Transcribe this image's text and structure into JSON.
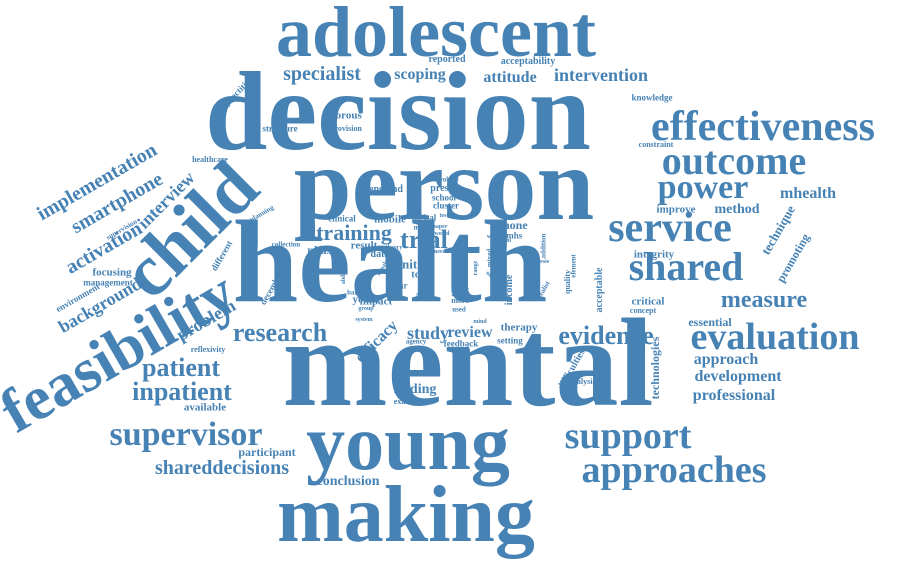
{
  "color": "#4682b4",
  "words": {
    "adolescent": "adolescent",
    "decision": "decision",
    "person": "person",
    "health": "health",
    "mental": "mental",
    "young": "young",
    "making": "making",
    "child": "child",
    "feasibility": "feasibility",
    "effectiveness": "effectiveness",
    "outcome": "outcome",
    "service": "service",
    "power": "power",
    "shared": "shared",
    "measure": "measure",
    "evaluation": "evaluation",
    "support": "support",
    "approaches": "approaches",
    "supervisor": "supervisor",
    "shareddecisions": "shareddecisions",
    "research": "research",
    "patient": "patient",
    "inpatient": "inpatient",
    "evidence": "evidence",
    "training": "training",
    "trial": "trial",
    "specialist": "specialist",
    "scoping": "scoping",
    "attitude": "attitude",
    "intervention": "intervention",
    "implementation": "implementation",
    "smartphone": "smartphone",
    "interview": "interview",
    "activation": "activation",
    "background": "background",
    "problem": "problem",
    "study": "study",
    "review": "review",
    "efficacy": "efficacy",
    "approach": "approach",
    "development": "development",
    "professional": "professional",
    "mhealth": "mhealth",
    "method": "method",
    "improve": "improve",
    "integrity": "integrity",
    "technique": "technique",
    "promoting": "promoting",
    "critical": "critical",
    "concept": "concept",
    "essential": "essential",
    "technologies": "technologies",
    "difficulties": "difficulties",
    "analysis": "analysis",
    "finding": "finding",
    "examine": "examine",
    "participant": "participant",
    "conclusion": "conclusion",
    "reflexivity": "reflexivity",
    "available": "available",
    "therapy": "therapy",
    "setting": "setting",
    "feedback": "feedback",
    "agency": "agency",
    "impact": "impact",
    "tool": "tool",
    "youth": "youth",
    "unit": "unit",
    "self": "self",
    "prom": "prom",
    "income": "income",
    "factor": "factor",
    "acceptable": "acceptable",
    "quality": "quality",
    "element": "element",
    "realist": "realist",
    "addition": "addition",
    "phone": "phone",
    "camhs": "camhs",
    "data": "data",
    "phase": "phase",
    "result": "result",
    "clinical": "clinical",
    "mobile": "mobile",
    "digital": "digital",
    "many": "many",
    "paper": "paper",
    "testing": "testing",
    "present": "present",
    "school": "school",
    "cluster": "cluster",
    "involved": "involved",
    "england": "england",
    "collection": "collection",
    "planning": "planning",
    "countrie": "countrie",
    "december": "december",
    "different": "different",
    "focusing": "focusing",
    "management": "management",
    "environment": "environment",
    "supervision": "supervision",
    "healthcare": "healthcare",
    "practitioner": "practitioner",
    "structure": "structure",
    "rigorous": "rigorous",
    "provision": "provision",
    "reported": "reported",
    "acceptability": "acceptability",
    "knowledge": "knowledge",
    "constraint": "constraint",
    "barrier": "barrier",
    "year": "year",
    "more": "more",
    "used": "used",
    "mixed": "mixed",
    "range": "range",
    "control": "control",
    "female": "female",
    "theory": "theory",
    "need": "need",
    "way": "way",
    "group": "group",
    "ability": "ability",
    "system": "system",
    "staff": "staff",
    "thesis": "thesis",
    "model": "model",
    "world": "world",
    "stage": "stage",
    "mind": "mind"
  }
}
